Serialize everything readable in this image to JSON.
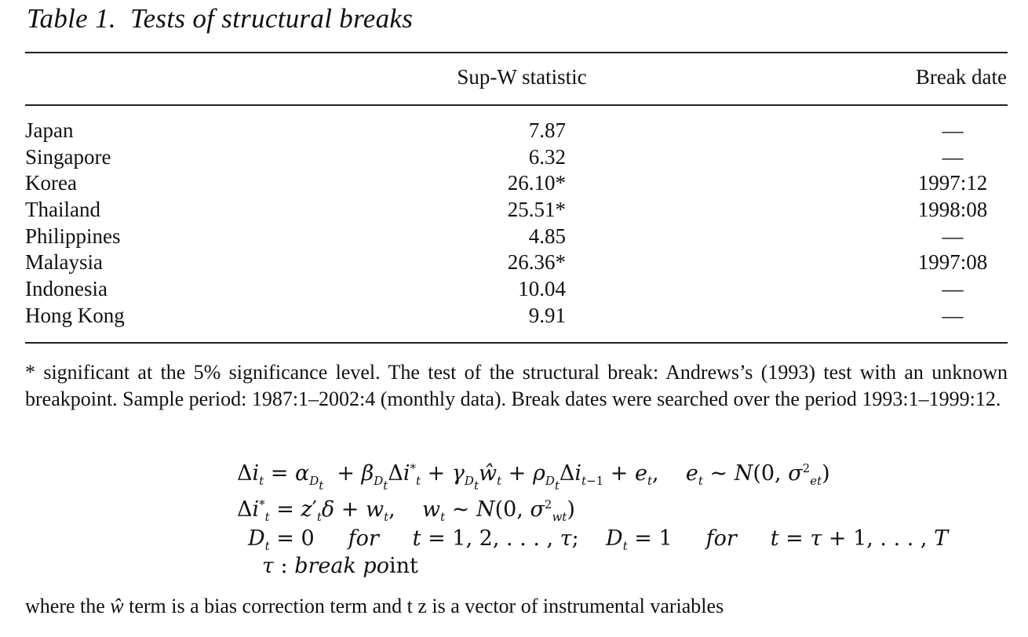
{
  "table": {
    "title": "Table 1.  Tests of structural breaks",
    "headers": {
      "col1": "",
      "col2": "Sup-W statistic",
      "col3": "Break date"
    },
    "rows": [
      {
        "country": "Japan",
        "stat": "7.87",
        "date": "—"
      },
      {
        "country": "Singapore",
        "stat": "6.32",
        "date": "—"
      },
      {
        "country": "Korea",
        "stat": "26.10*",
        "date": "1997:12"
      },
      {
        "country": "Thailand",
        "stat": "25.51*",
        "date": "1998:08"
      },
      {
        "country": "Philippines",
        "stat": "4.85",
        "date": "—"
      },
      {
        "country": "Malaysia",
        "stat": "26.36*",
        "date": "1997:08"
      },
      {
        "country": "Indonesia",
        "stat": "10.04",
        "date": "—"
      },
      {
        "country": "Hong Kong",
        "stat": "9.91",
        "date": "—"
      }
    ]
  },
  "note": "* significant at the 5% significance level. The test of the structural break: Andrews’s (1993) test with an unknown breakpoint. Sample period: 1987:1–2002:4 (monthly data). Break dates were searched over the period 1993:1–1999:12.",
  "equations": {
    "eq1": "Δi_t = α_{D_t} + β_{D_t}Δi*_t + γ_{D_t}ŵ_t + ρ_{D_t}Δi_{t−1} + e_t,   e_t ~ N(0, σ²_et)",
    "eq2": "Δi*_t = z′_tδ + w_t,   w_t ~ N(0, σ²_wt)",
    "eq3": "D_t = 0   for   t = 1, 2, . . . , τ;   D_t = 1   for   t = τ + 1, . . . , T",
    "eq4": "τ : break point"
  },
  "footer": {
    "before": "where the ",
    "symbol": "ŵ",
    "after": " term is a bias correction term and t z is a vector of instrumental variables"
  }
}
